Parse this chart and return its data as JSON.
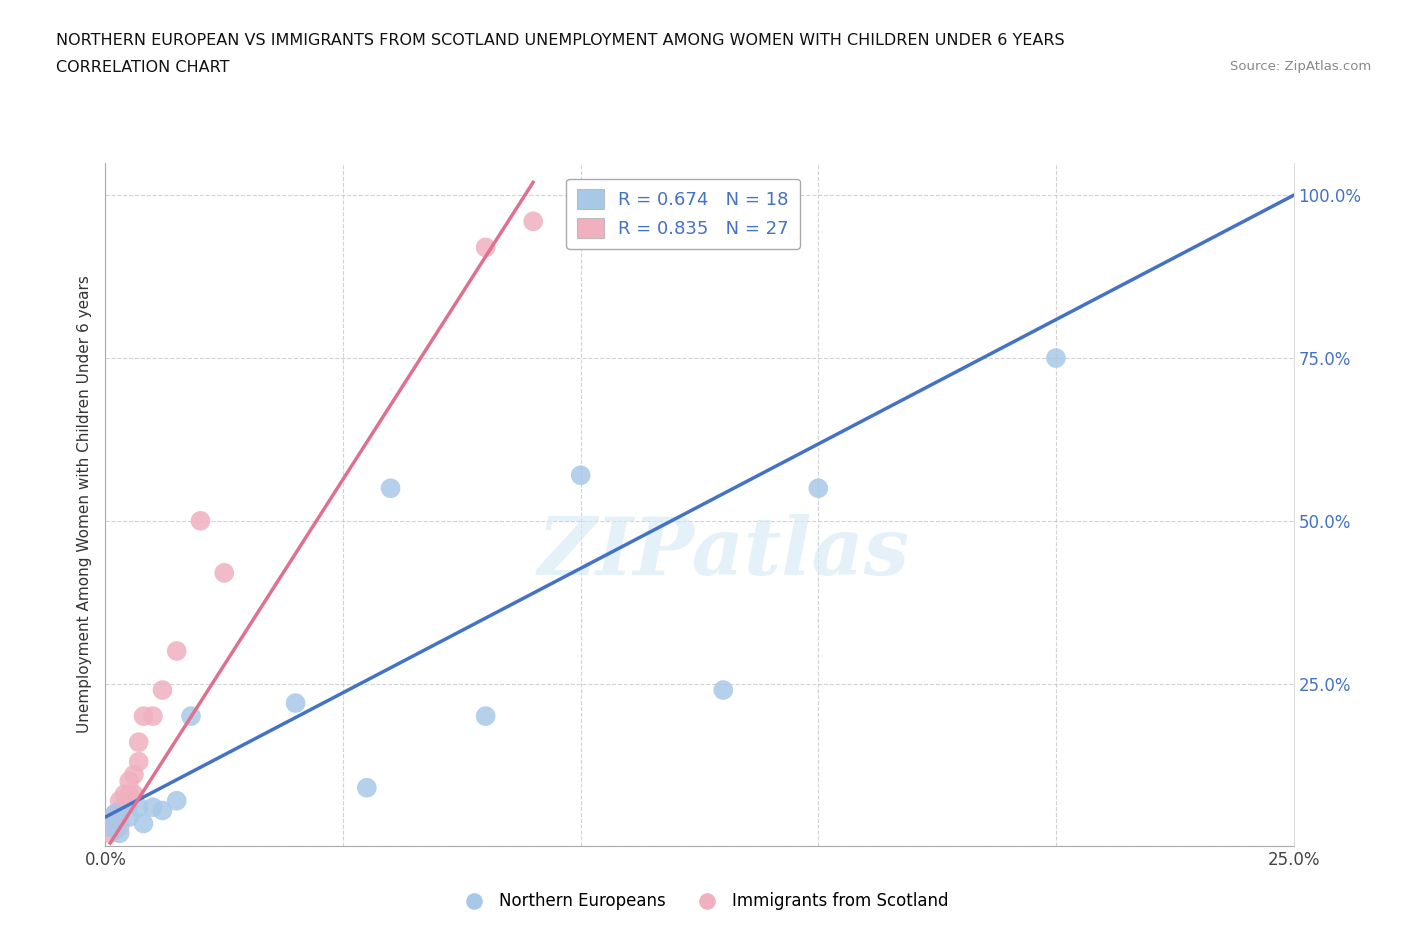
{
  "title_line1": "NORTHERN EUROPEAN VS IMMIGRANTS FROM SCOTLAND UNEMPLOYMENT AMONG WOMEN WITH CHILDREN UNDER 6 YEARS",
  "title_line2": "CORRELATION CHART",
  "source_text": "Source: ZipAtlas.com",
  "ylabel": "Unemployment Among Women with Children Under 6 years",
  "watermark": "ZIPatlas",
  "xlim": [
    0.0,
    0.25
  ],
  "ylim": [
    0.0,
    1.05
  ],
  "x_ticks": [
    0.0,
    0.05,
    0.1,
    0.15,
    0.2,
    0.25
  ],
  "x_tick_labels": [
    "0.0%",
    "",
    "",
    "",
    "",
    "25.0%"
  ],
  "y_ticks": [
    0.0,
    0.25,
    0.5,
    0.75,
    1.0
  ],
  "y_tick_labels": [
    "",
    "25.0%",
    "50.0%",
    "75.0%",
    "100.0%"
  ],
  "grid_color": "#c8c8c8",
  "background_color": "#ffffff",
  "blue_color": "#a8c8e8",
  "pink_color": "#f0b0c0",
  "blue_line_color": "#4472c4",
  "pink_line_color": "#e07090",
  "right_axis_color": "#4472c4",
  "blue_R": 0.674,
  "blue_N": 18,
  "pink_R": 0.835,
  "pink_N": 27,
  "blue_scatter_x": [
    0.001,
    0.002,
    0.003,
    0.005,
    0.007,
    0.008,
    0.01,
    0.012,
    0.015,
    0.018,
    0.04,
    0.055,
    0.06,
    0.08,
    0.1,
    0.13,
    0.15,
    0.2
  ],
  "blue_scatter_y": [
    0.03,
    0.05,
    0.02,
    0.045,
    0.06,
    0.035,
    0.06,
    0.055,
    0.07,
    0.2,
    0.22,
    0.09,
    0.55,
    0.2,
    0.57,
    0.24,
    0.55,
    0.75
  ],
  "pink_scatter_x": [
    0.001,
    0.001,
    0.001,
    0.002,
    0.002,
    0.002,
    0.003,
    0.003,
    0.003,
    0.003,
    0.004,
    0.004,
    0.005,
    0.005,
    0.005,
    0.006,
    0.006,
    0.007,
    0.007,
    0.008,
    0.01,
    0.012,
    0.015,
    0.02,
    0.025,
    0.08,
    0.09
  ],
  "pink_scatter_y": [
    0.02,
    0.03,
    0.04,
    0.025,
    0.035,
    0.05,
    0.03,
    0.04,
    0.055,
    0.07,
    0.06,
    0.08,
    0.065,
    0.08,
    0.1,
    0.08,
    0.11,
    0.13,
    0.16,
    0.2,
    0.2,
    0.24,
    0.3,
    0.5,
    0.42,
    0.92,
    0.96
  ],
  "blue_trendline_x": [
    0.0,
    0.25
  ],
  "blue_trendline_y": [
    0.045,
    1.0
  ],
  "pink_trendline_x": [
    0.001,
    0.09
  ],
  "pink_trendline_y": [
    0.005,
    1.02
  ],
  "legend_labels": [
    "Northern Europeans",
    "Immigrants from Scotland"
  ]
}
